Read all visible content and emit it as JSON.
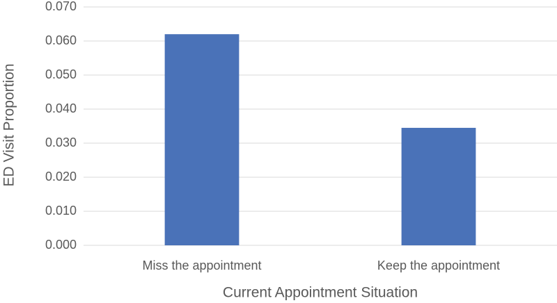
{
  "chart_data": {
    "type": "bar",
    "categories": [
      "Miss the appointment",
      "Keep the appointment"
    ],
    "values": [
      0.062,
      0.0345
    ],
    "color": "#4a72b8",
    "x_label": "Current Appointment Situation",
    "y_label": "ED Visit Proportion",
    "ylim": [
      0,
      0.07
    ],
    "yticks": [
      {
        "value": 0,
        "label": "0.000"
      },
      {
        "value": 0.01,
        "label": "0.010"
      },
      {
        "value": 0.02,
        "label": "0.020"
      },
      {
        "value": 0.03,
        "label": "0.030"
      },
      {
        "value": 0.04,
        "label": "0.040"
      },
      {
        "value": 0.05,
        "label": "0.050"
      },
      {
        "value": 0.06,
        "label": "0.060"
      },
      {
        "value": 0.07,
        "label": "0.070"
      }
    ],
    "grid": true
  }
}
